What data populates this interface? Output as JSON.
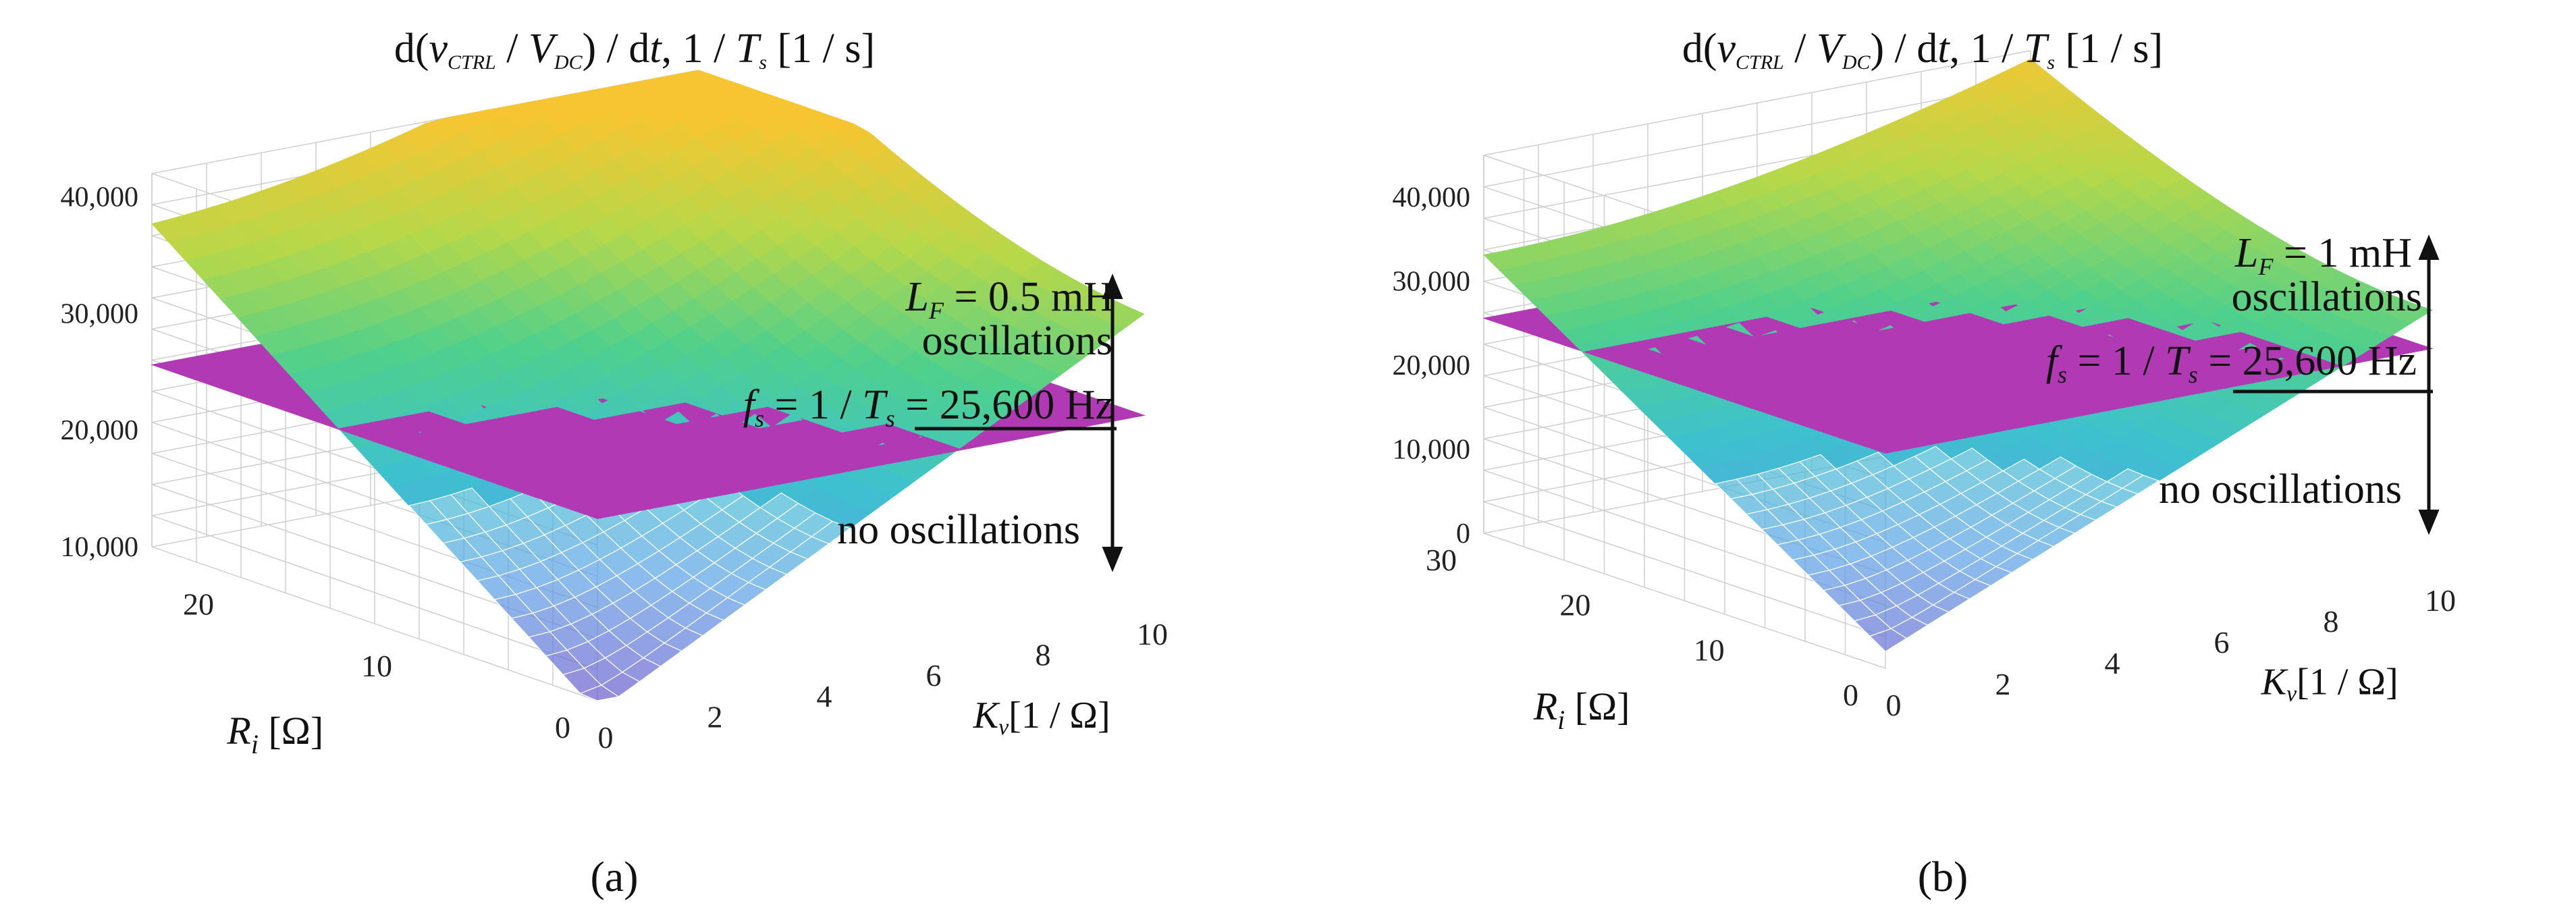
{
  "chart_data": [
    {
      "type": "surface3d",
      "panel_label": "(a)",
      "title_parts": {
        "lead": "d(",
        "v": "v",
        "v_sub": "CTRL",
        "mid": " / ",
        "V": "V",
        "V_sub": "DC",
        "tail": ") / d",
        "t": "t",
        "rest": ", 1 / ",
        "T": "T",
        "T_sub": "s",
        "unit": " [1 / s]"
      },
      "x_axis": {
        "label_sym": "K",
        "label_sub": "v",
        "label_unit": "[1 / Ω]",
        "range": [
          0,
          10
        ],
        "ticks": [
          "0",
          "2",
          "4",
          "6",
          "8",
          "10"
        ]
      },
      "y_axis": {
        "label_sym": "R",
        "label_sub": "i",
        "label_unit": "[Ω]",
        "range": [
          0,
          25
        ],
        "ticks": [
          "0",
          "10",
          "20"
        ]
      },
      "z_axis": {
        "range": [
          10000,
          42000
        ],
        "ticks": [
          "10,000",
          "20,000",
          "30,000",
          "40,000"
        ]
      },
      "plane": {
        "name": "1 / T_s",
        "value": 25600,
        "color": "#b13ab4"
      },
      "surface": {
        "name": "d(v_CTRL / V_DC) / dt",
        "colormap": [
          "#6a5acd",
          "#5aa0e6",
          "#3ec1cf",
          "#4fd08c",
          "#b6d84a",
          "#f7c531"
        ],
        "lf_mH": 0.5
      },
      "annotations": {
        "lf_sym": "L",
        "lf_sub": "F",
        "lf_val": " = 0.5 mH",
        "osc": "oscillations",
        "fs_sym": "f",
        "fs_sub": "s",
        "fs_mid": " = 1 / ",
        "fs_T": "T",
        "fs_Tsub": "s",
        "fs_val": " = 25,600 Hz",
        "no_osc": "no oscillations"
      }
    },
    {
      "type": "surface3d",
      "panel_label": "(b)",
      "title_parts": {
        "lead": "d(",
        "v": "v",
        "v_sub": "CTRL",
        "mid": " / ",
        "V": "V",
        "V_sub": "DC",
        "tail": ") / d",
        "t": "t",
        "rest": ", 1 / ",
        "T": "T",
        "T_sub": "s",
        "unit": " [1 / s]"
      },
      "x_axis": {
        "label_sym": "K",
        "label_sub": "v",
        "label_unit": "[1 / Ω]",
        "range": [
          0,
          10
        ],
        "ticks": [
          "0",
          "2",
          "4",
          "6",
          "8",
          "10"
        ]
      },
      "y_axis": {
        "label_sym": "R",
        "label_sub": "i",
        "label_unit": "[Ω]",
        "range": [
          0,
          30
        ],
        "ticks": [
          "0",
          "10",
          "20",
          "30"
        ]
      },
      "z_axis": {
        "range": [
          0,
          45000
        ],
        "ticks": [
          "0",
          "10,000",
          "20,000",
          "30,000",
          "40,000"
        ]
      },
      "plane": {
        "name": "1 / T_s",
        "value": 25600,
        "color": "#b13ab4"
      },
      "surface": {
        "name": "d(v_CTRL / V_DC) / dt",
        "colormap": [
          "#6a5acd",
          "#5aa0e6",
          "#3ec1cf",
          "#4fd08c",
          "#b6d84a",
          "#f7c531"
        ],
        "lf_mH": 1
      },
      "annotations": {
        "lf_sym": "L",
        "lf_sub": "F",
        "lf_val": " = 1 mH",
        "osc": "oscillations",
        "fs_sym": "f",
        "fs_sub": "s",
        "fs_mid": " = 1 / ",
        "fs_T": "T",
        "fs_Tsub": "s",
        "fs_val": " = 25,600 Hz",
        "no_osc": "no oscillations"
      }
    }
  ]
}
